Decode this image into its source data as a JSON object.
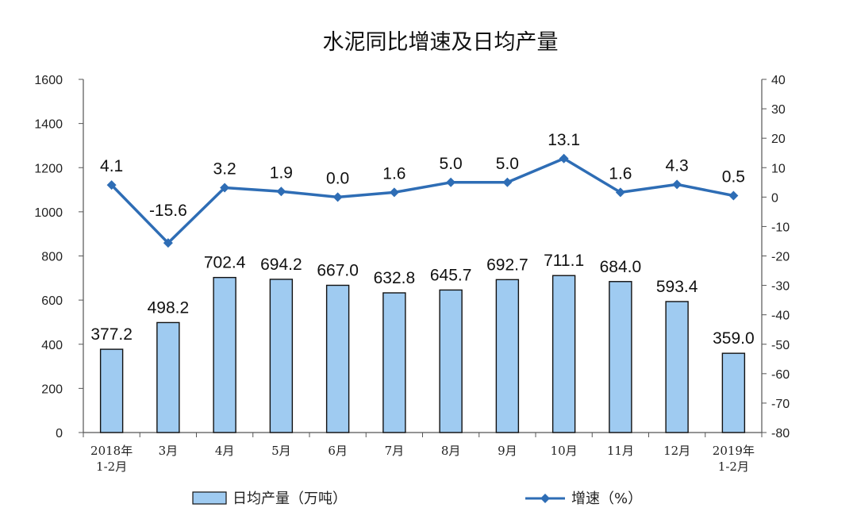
{
  "chart_data": {
    "type": "bar",
    "title": "水泥同比增速及日均产量",
    "categories": [
      [
        "2018年",
        "1-2月"
      ],
      [
        "3月"
      ],
      [
        "4月"
      ],
      [
        "5月"
      ],
      [
        "6月"
      ],
      [
        "7月"
      ],
      [
        "8月"
      ],
      [
        "9月"
      ],
      [
        "10月"
      ],
      [
        "11月"
      ],
      [
        "12月"
      ],
      [
        "2019年",
        "1-2月"
      ]
    ],
    "series": [
      {
        "name": "日均产量（万吨）",
        "type": "bar",
        "axis": "left",
        "values": [
          377.2,
          498.2,
          702.4,
          694.2,
          667.0,
          632.8,
          645.7,
          692.7,
          711.1,
          684.0,
          593.4,
          359.0
        ],
        "labels": [
          "377.2",
          "498.2",
          "702.4",
          "694.2",
          "667.0",
          "632.8",
          "645.7",
          "692.7",
          "711.1",
          "684.0",
          "593.4",
          "359.0"
        ],
        "color": "#9fcbf1"
      },
      {
        "name": "增速（%）",
        "type": "line",
        "axis": "right",
        "values": [
          4.1,
          -15.6,
          3.2,
          1.9,
          0.0,
          1.6,
          5.0,
          5.0,
          13.1,
          1.6,
          4.3,
          0.5
        ],
        "labels": [
          "4.1",
          "-15.6",
          "3.2",
          "1.9",
          "0.0",
          "1.6",
          "5.0",
          "5.0",
          "13.1",
          "1.6",
          "4.3",
          "0.5"
        ],
        "color": "#2e6db5"
      }
    ],
    "y_left": {
      "min": 0,
      "max": 1600,
      "ticks": [
        0,
        200,
        400,
        600,
        800,
        1000,
        1200,
        1400,
        1600
      ]
    },
    "y_right": {
      "min": -80,
      "max": 40,
      "ticks": [
        40,
        30,
        20,
        10,
        0,
        -10,
        -20,
        -30,
        -40,
        -50,
        -60,
        -70,
        -80
      ]
    },
    "grid": false,
    "legend": {
      "placement": "bottom"
    }
  }
}
